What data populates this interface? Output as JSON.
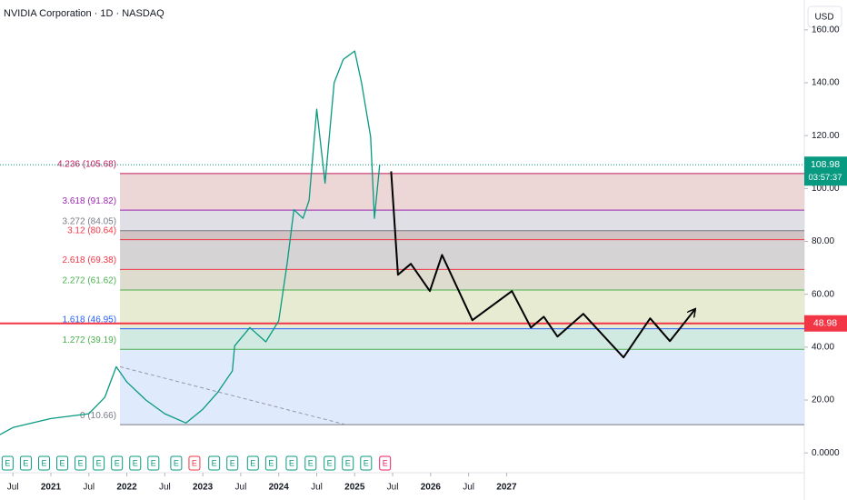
{
  "chart_data": {
    "type": "line",
    "title": "NVIDIA Corporation · 1D · NASDAQ",
    "currency": "USD",
    "xlim": [
      2020.33,
      2030.92
    ],
    "xticks": [
      {
        "value": 2020.5,
        "label": "Jul"
      },
      2021,
      {
        "value": 2021.5,
        "label": "Jul"
      },
      2022,
      {
        "value": 2022.5,
        "label": "Jul"
      },
      2023,
      {
        "value": 2023.5,
        "label": "Jul"
      },
      2024,
      {
        "value": 2024.5,
        "label": "Jul"
      },
      2025,
      {
        "value": 2025.5,
        "label": "Jul"
      },
      2026,
      {
        "value": 2026.5,
        "label": "Jul"
      },
      2027
    ],
    "ylim": [
      -7.5,
      171.3
    ],
    "yticks": [
      {
        "value": 0,
        "label": "0.0000"
      },
      {
        "value": 20,
        "label": "20.00"
      },
      {
        "value": 40,
        "label": "40.00"
      },
      {
        "value": 60,
        "label": "60.00"
      },
      {
        "value": 80,
        "label": "80.00"
      },
      {
        "value": 100,
        "label": "100.00"
      },
      {
        "value": 120,
        "label": "120.00"
      },
      {
        "value": 140,
        "label": "140.00"
      },
      {
        "value": 160,
        "label": "160.00"
      }
    ],
    "series": [
      {
        "color": "#089981",
        "x": [
          2020.33,
          2020.5,
          2021.0,
          2021.5,
          2021.71,
          2021.86,
          2022.0,
          2022.25,
          2022.5,
          2022.78,
          2023.0,
          2023.2,
          2023.39,
          2023.42,
          2023.62,
          2023.83,
          2024.0,
          2024.11,
          2024.2,
          2024.32,
          2024.4,
          2024.5,
          2024.61,
          2024.73,
          2024.85,
          2025.0,
          2025.09,
          2025.21,
          2025.26,
          2025.33
        ],
        "values": [
          6.9,
          9.6,
          13,
          14.8,
          21,
          32.6,
          26.8,
          20,
          14.8,
          11.3,
          16.5,
          23,
          31,
          40.5,
          47.4,
          42,
          50,
          71.5,
          92,
          88.7,
          95.5,
          130,
          102,
          140,
          148.8,
          152,
          140,
          119.6,
          88.7,
          109
        ]
      },
      {
        "color": "#000000",
        "x": [
          2025.48,
          2025.57,
          2025.74,
          2025.99,
          2026.15,
          2026.55,
          2027.07,
          2027.32,
          2027.49,
          2027.67,
          2028.01,
          2028.54,
          2028.89,
          2029.15,
          2029.48
        ],
        "values": [
          106.5,
          67.4,
          71.5,
          61.2,
          74.9,
          50.2,
          61.2,
          47.4,
          51.5,
          44,
          52.6,
          36.1,
          50.9,
          42.3,
          54.3
        ]
      }
    ],
    "fib_levels": {
      "start": 2021.91,
      "values": [
        10.66,
        39.19,
        46.95,
        61.62,
        69.38,
        80.64,
        84.05,
        91.82,
        105.68
      ],
      "value_labels": [
        "0 (10.66)",
        "1.272 (39.19)",
        "1.618 (46.95)",
        "2.272 (61.62)",
        "2.618 (69.38)",
        "3.12 (80.64)",
        "3.272 (84.05)",
        "3.618 (91.82)",
        "4.236 (105.68)"
      ],
      "colors": [
        "#787b86",
        "#4caf50",
        "#2962ff",
        "#4caf50",
        "#f23645",
        "#f23645",
        "#787b86",
        "#9c27b0",
        "#c2185b"
      ],
      "fills": [
        "#dbe6fd",
        "#c8e6dc",
        "#e2e8c9",
        "#d7d6c7",
        "#cecbcd",
        "#c9b8ba",
        "#dad9e2",
        "#e9cfcf"
      ]
    },
    "trendline": {
      "x": [
        2021.91,
        2024.88
      ],
      "values": [
        32.6,
        10.7
      ]
    },
    "horizontal_line": {
      "value": 48.98,
      "color": "#f23645"
    },
    "last_price": {
      "value": 108.98,
      "countdown": "03:57:37",
      "color": "#089981"
    },
    "earnings": {
      "x": [
        2020.43,
        2020.67,
        2020.91,
        2021.15,
        2021.39,
        2021.63,
        2021.87,
        2022.11,
        2022.35,
        2022.65,
        2022.89,
        2023.15,
        2023.39,
        2023.66,
        2023.9,
        2024.17,
        2024.42,
        2024.67,
        2024.91,
        2025.15,
        2025.4
      ],
      "labels": [
        "E",
        "E",
        "E",
        "E",
        "E",
        "E",
        "E",
        "E",
        "E",
        "E",
        "E",
        "E",
        "E",
        "E",
        "E",
        "E",
        "E",
        "E",
        "E",
        "E",
        "E"
      ],
      "colors": [
        "#089981",
        "#089981",
        "#089981",
        "#089981",
        "#089981",
        "#089981",
        "#089981",
        "#089981",
        "#089981",
        "#089981",
        "#f23645",
        "#089981",
        "#089981",
        "#089981",
        "#089981",
        "#089981",
        "#089981",
        "#089981",
        "#089981",
        "#089981",
        "#e91e63"
      ]
    }
  }
}
